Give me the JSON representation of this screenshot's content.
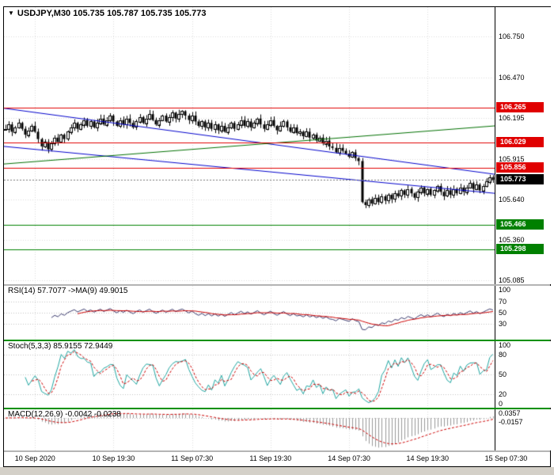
{
  "chart_data": [
    {
      "type": "candlestick",
      "panel": "main",
      "marker": "▼",
      "symbol": "USDJPY,M30",
      "ohlc_text": "105.735 105.787 105.735 105.773",
      "open": 105.735,
      "high": 105.787,
      "low": 105.735,
      "close": 105.773,
      "ylim": [
        105.06,
        106.95
      ],
      "y_ticks": [
        "106.750",
        "106.470",
        "106.195",
        "105.915",
        "105.640",
        "105.360",
        "105.085"
      ],
      "levels": [
        {
          "price": 106.265,
          "label": "106.265",
          "color": "#e00000"
        },
        {
          "price": 106.029,
          "label": "106.029",
          "color": "#e00000"
        },
        {
          "price": 105.856,
          "label": "105.856",
          "color": "#e00000"
        },
        {
          "price": 105.466,
          "label": "105.466",
          "color": "#008000"
        },
        {
          "price": 105.298,
          "label": "105.298",
          "color": "#008000"
        }
      ],
      "current_price": {
        "label": "105.773",
        "value": 105.773,
        "color": "#000000"
      },
      "trend_lines": [
        {
          "color": "#0000cc",
          "from": 106.26,
          "to": 105.81
        },
        {
          "color": "#0000cc",
          "from": 106.0,
          "to": 105.68
        },
        {
          "color": "#007000",
          "from": 105.88,
          "to": 106.14
        }
      ],
      "colors": {
        "bull": "#ffffff",
        "bear": "#000000",
        "wick": "#000000"
      },
      "closes": [
        106.12,
        106.15,
        106.1,
        106.13,
        106.16,
        106.12,
        106.08,
        106.11,
        106.14,
        106.1,
        106.05,
        106.0,
        106.03,
        105.98,
        106.02,
        106.06,
        106.03,
        106.08,
        106.05,
        106.1,
        106.13,
        106.16,
        106.12,
        106.15,
        106.18,
        106.14,
        106.17,
        106.13,
        106.16,
        106.19,
        106.15,
        106.18,
        106.21,
        106.17,
        106.14,
        106.18,
        106.15,
        106.19,
        106.16,
        106.13,
        106.17,
        106.2,
        106.16,
        106.19,
        106.22,
        106.18,
        106.15,
        106.18,
        106.21,
        106.17,
        106.2,
        106.23,
        106.19,
        106.22,
        106.24,
        106.21,
        106.18,
        106.21,
        106.17,
        106.14,
        106.17,
        106.13,
        106.16,
        106.12,
        106.15,
        106.11,
        106.14,
        106.1,
        106.13,
        106.16,
        106.12,
        106.15,
        106.18,
        106.14,
        106.17,
        106.13,
        106.16,
        106.19,
        106.15,
        106.12,
        106.15,
        106.18,
        106.14,
        106.11,
        106.14,
        106.17,
        106.13,
        106.1,
        106.13,
        106.09,
        106.1,
        106.07,
        106.1,
        106.06,
        106.08,
        106.04,
        106.06,
        106.02,
        106.04,
        106.0,
        105.99,
        105.96,
        105.99,
        105.97,
        105.95,
        105.93,
        105.96,
        105.92,
        105.9,
        105.62,
        105.6,
        105.64,
        105.61,
        105.65,
        105.62,
        105.66,
        105.63,
        105.67,
        105.64,
        105.68,
        105.66,
        105.7,
        105.67,
        105.71,
        105.68,
        105.65,
        105.69,
        105.72,
        105.68,
        105.71,
        105.67,
        105.7,
        105.73,
        105.69,
        105.66,
        105.7,
        105.67,
        105.71,
        105.68,
        105.72,
        105.69,
        105.72,
        105.75,
        105.71,
        105.74,
        105.7,
        105.73,
        105.76,
        105.79,
        105.773
      ]
    },
    {
      "type": "line",
      "panel": "rsi",
      "label": "RSI(14) 57.7077 ->MA(9) 49.9015",
      "params": {
        "period": 14,
        "ma": 9
      },
      "ylim": [
        0,
        100
      ],
      "levels": [
        70,
        50,
        30
      ],
      "scale_labels": [
        "100",
        "70",
        "50",
        "30"
      ],
      "colors": {
        "main": "#3c3c6e",
        "signal": "#cc0000"
      }
    },
    {
      "type": "line",
      "panel": "stoch",
      "label": "Stoch(5,3,3) 85.9155 72.9449",
      "params": {
        "k": 5,
        "slowing": 3,
        "d": 3
      },
      "ylim": [
        0,
        100
      ],
      "levels": [
        80,
        50,
        20
      ],
      "scale_labels": [
        "100",
        "80",
        "50",
        "20",
        "0"
      ],
      "colors": {
        "main": "#1fa5a0",
        "signal": "#cc0000"
      }
    },
    {
      "type": "histogram",
      "panel": "macd",
      "label": "MACD(12,26,9) -0.0042 -0.0238",
      "params": {
        "fast": 12,
        "slow": 26,
        "signal": 9
      },
      "values_text": [
        "-0.0042",
        "-0.0238"
      ],
      "levels": [
        0
      ],
      "scale_labels": [
        "0.0357",
        "-0.0157"
      ],
      "colors": {
        "hist": "#999999",
        "signal": "#cc0000"
      }
    }
  ],
  "time_axis": {
    "labels": [
      "10 Sep 2020",
      "10 Sep 19:30",
      "11 Sep 07:30",
      "11 Sep 19:30",
      "14 Sep 07:30",
      "14 Sep 19:30",
      "15 Sep 07:30"
    ]
  },
  "ui": {
    "bottom_strip_color": "#d4d0c8",
    "grid_color": "#dcdcdc",
    "frame_border": "#000000"
  }
}
